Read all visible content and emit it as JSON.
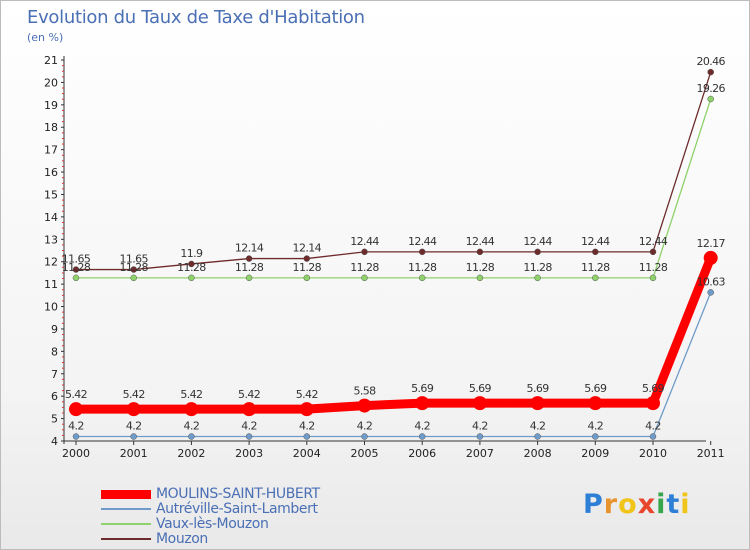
{
  "title": "Evolution du Taux de Taxe d'Habitation",
  "subtitle": "(en %)",
  "brand": {
    "text": "Proxiti",
    "letter_colors": [
      "#2e7fd6",
      "#e8932d",
      "#f0c419",
      "#e8452d",
      "#35a64a",
      "#2e7fd6",
      "#f0c419"
    ]
  },
  "chart_data": {
    "type": "line",
    "title": "Evolution du Taux de Taxe d'Habitation",
    "ylabel": "(en %)",
    "xlabel": "",
    "x": [
      "2000",
      "2001",
      "2002",
      "2003",
      "2004",
      "2005",
      "2006",
      "2007",
      "2008",
      "2009",
      "2010",
      "2011"
    ],
    "ylim": [
      4,
      21
    ],
    "yticks": [
      "4",
      "5",
      "6",
      "7",
      "8",
      "9",
      "10",
      "11",
      "12",
      "13",
      "14",
      "15",
      "16",
      "17",
      "18",
      "19",
      "20",
      "21"
    ],
    "grid": false,
    "legend_position": "bottom-left",
    "series": [
      {
        "name": "MOULINS-SAINT-HUBERT",
        "color": "#ff0000",
        "highlight": true,
        "values": [
          5.42,
          5.42,
          5.42,
          5.42,
          5.42,
          5.58,
          5.69,
          5.69,
          5.69,
          5.69,
          5.69,
          12.17
        ],
        "labels": [
          "5.42",
          "5.42",
          "5.42",
          "5.42",
          "5.42",
          "5.58",
          "5.69",
          "5.69",
          "5.69",
          "5.69",
          "5.69",
          "12.17"
        ]
      },
      {
        "name": "Autréville-Saint-Lambert",
        "color": "#6e9bc9",
        "highlight": false,
        "values": [
          4.2,
          4.2,
          4.2,
          4.2,
          4.2,
          4.2,
          4.2,
          4.2,
          4.2,
          4.2,
          4.2,
          10.63
        ],
        "labels": [
          "4.2",
          "4.2",
          "4.2",
          "4.2",
          "4.2",
          "4.2",
          "4.2",
          "4.2",
          "4.2",
          "4.2",
          "4.2",
          "10.63"
        ]
      },
      {
        "name": "Vaux-lès-Mouzon",
        "color": "#8fd16a",
        "highlight": false,
        "values": [
          11.28,
          11.28,
          11.28,
          11.28,
          11.28,
          11.28,
          11.28,
          11.28,
          11.28,
          11.28,
          11.28,
          19.26
        ],
        "labels": [
          "11.28",
          "11.28",
          "11.28",
          "11.28",
          "11.28",
          "11.28",
          "11.28",
          "11.28",
          "11.28",
          "11.28",
          "11.28",
          "19.26"
        ]
      },
      {
        "name": "Mouzon",
        "color": "#6e2b2b",
        "highlight": false,
        "values": [
          11.65,
          11.65,
          11.9,
          12.14,
          12.14,
          12.44,
          12.44,
          12.44,
          12.44,
          12.44,
          12.44,
          20.46
        ],
        "labels": [
          "11.65",
          "11.65",
          "11.9",
          "12.14",
          "12.14",
          "12.44",
          "12.44",
          "12.44",
          "12.44",
          "12.44",
          "12.44",
          "20.46"
        ]
      }
    ]
  }
}
